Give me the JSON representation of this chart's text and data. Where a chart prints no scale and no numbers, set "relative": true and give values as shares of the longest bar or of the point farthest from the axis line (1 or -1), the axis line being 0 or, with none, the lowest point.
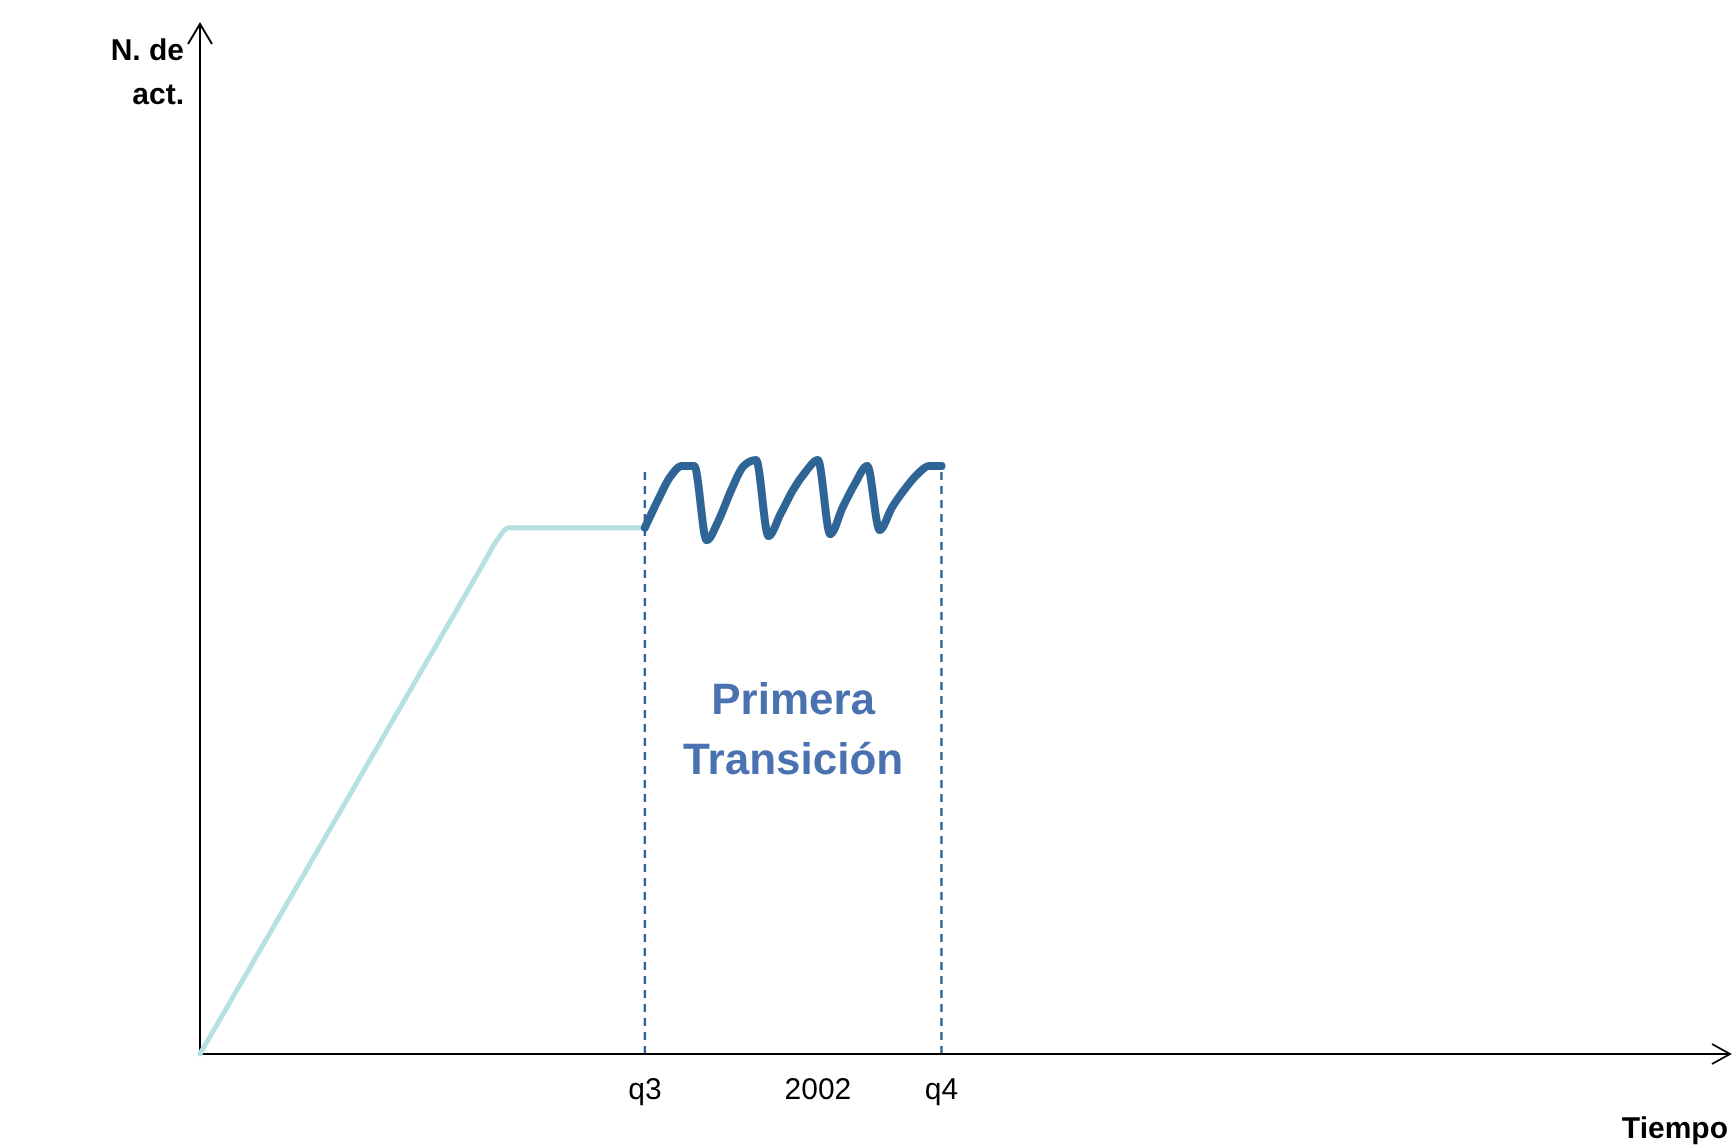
{
  "chart_data": {
    "type": "line",
    "relative": true,
    "xlabel": "Tiempo",
    "categories": [
      null,
      null,
      null,
      null,
      null,
      null,
      null,
      null,
      null,
      null,
      null,
      null,
      null,
      null,
      null,
      null,
      null,
      null,
      null,
      null,
      null,
      null,
      null,
      null,
      null,
      null,
      null,
      null,
      null,
      null,
      null,
      null,
      null,
      null,
      null,
      null,
      "q3",
      null,
      null,
      null,
      null,
      null,
      null,
      null,
      null,
      null,
      null,
      null,
      null,
      null,
      "2002",
      null,
      null,
      null,
      null,
      null,
      null,
      null,
      null,
      null,
      "q4",
      null,
      null,
      null,
      null,
      null,
      null,
      null,
      null,
      null,
      null,
      null,
      null,
      null,
      null,
      null,
      null,
      null,
      null,
      null,
      null,
      null,
      null,
      null,
      null,
      null,
      null,
      null,
      null,
      null,
      null,
      null,
      null,
      null,
      null,
      null,
      null,
      null,
      null,
      null,
      null,
      null,
      null,
      null,
      null,
      null,
      null,
      null,
      null,
      null,
      null,
      null,
      null,
      null,
      null,
      null,
      null,
      null,
      null,
      null,
      null,
      null,
      null,
      null
    ],
    "series": [
      {
        "color": "#b7e0e3",
        "values": [
          0,
          0.036,
          0.072,
          0.108,
          0.144,
          0.18,
          0.216,
          0.252,
          0.288,
          0.324,
          0.36,
          0.396,
          0.432,
          0.468,
          0.504,
          0.54,
          0.576,
          0.612,
          0.648,
          0.684,
          0.72,
          0.756,
          0.792,
          0.828,
          0.864,
          0.886,
          0.886,
          0.886,
          0.886,
          0.886,
          0.886,
          0.886,
          0.886,
          0.886,
          0.886,
          0.886,
          0.886,
          null,
          null,
          null,
          null,
          null,
          null,
          null,
          null,
          null,
          null,
          null,
          null,
          null,
          null,
          null,
          null,
          null,
          null,
          null,
          null,
          null,
          null,
          null,
          null,
          null,
          null,
          null,
          null,
          null,
          null,
          null,
          null,
          null,
          null,
          null,
          null,
          null,
          null,
          null,
          null,
          null,
          null,
          null,
          null,
          null,
          null,
          null,
          null,
          null,
          null,
          null,
          null,
          null,
          null,
          null,
          null,
          null,
          null,
          null,
          null,
          null,
          null,
          null,
          null,
          null,
          null,
          null,
          null,
          null,
          null,
          null,
          null,
          null,
          null,
          null,
          null,
          null,
          null,
          null,
          null,
          null,
          null,
          null,
          null,
          null,
          null,
          null
        ]
      },
      {
        "color": "#2e6496",
        "values": [
          null,
          null,
          null,
          null,
          null,
          null,
          null,
          null,
          null,
          null,
          null,
          null,
          null,
          null,
          null,
          null,
          null,
          null,
          null,
          null,
          null,
          null,
          null,
          null,
          null,
          null,
          null,
          null,
          null,
          null,
          null,
          null,
          null,
          null,
          null,
          null,
          0.886,
          0.93,
          0.97,
          0.99,
          0.99,
          0.865,
          0.9,
          0.95,
          0.99,
          1,
          0.872,
          0.91,
          0.95,
          0.98,
          1,
          0.875,
          0.92,
          0.96,
          0.99,
          0.882,
          0.92,
          0.95,
          0.975,
          0.99,
          0.99,
          null,
          null,
          null,
          null,
          null,
          null,
          null,
          null,
          null,
          null,
          null,
          null,
          null,
          null,
          null,
          null,
          null,
          null,
          null,
          null,
          null,
          null,
          null,
          null,
          null,
          null,
          null,
          null,
          null,
          null,
          null,
          null,
          null,
          null,
          null,
          null,
          null,
          null,
          null,
          null,
          null,
          null,
          null,
          null,
          null,
          null,
          null,
          null,
          null,
          null,
          null,
          null,
          null,
          null,
          null,
          null,
          null,
          null,
          null,
          null,
          null,
          null,
          null
        ]
      }
    ],
    "ref_lines": [
      {
        "axis": "x",
        "value": "q3",
        "color": "#2e6496",
        "line_style": "dashed"
      },
      {
        "axis": "x",
        "value": "q4",
        "color": "#2e6496",
        "line_style": "dashed"
      }
    ],
    "annotations": [
      "Primera Transición",
      "N. de act."
    ]
  }
}
